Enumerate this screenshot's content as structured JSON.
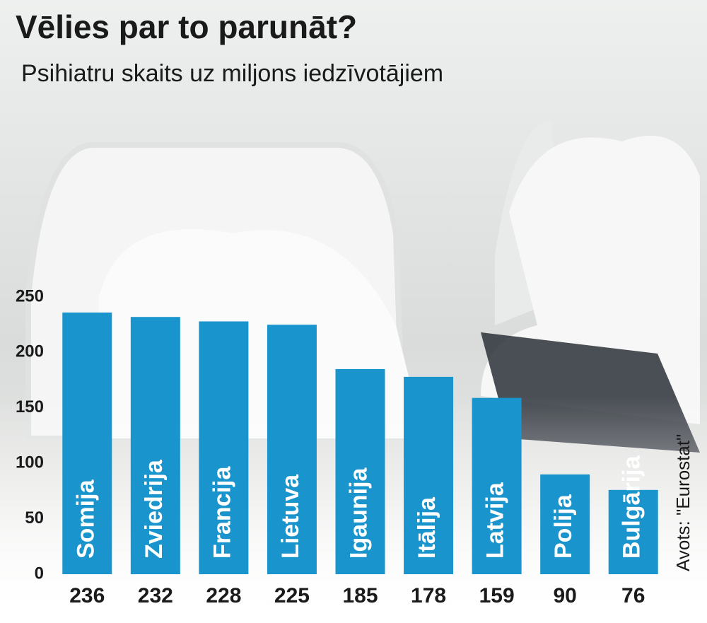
{
  "chart_data": {
    "type": "bar",
    "title": "Vēlies par to parunāt?",
    "subtitle": "Psihiatru skaits uz miljons iedzīvotājiem",
    "source": "Avots: \"Eurostat\"",
    "categories": [
      "Somija",
      "Zviedrija",
      "Francija",
      "Lietuva",
      "Igaunija",
      "Itālija",
      "Latvija",
      "Polija",
      "Bulgārija"
    ],
    "values": [
      236,
      232,
      228,
      225,
      185,
      178,
      159,
      90,
      76
    ],
    "color": "#1a94cc",
    "ylim": [
      0,
      250
    ],
    "yticks": [
      0,
      50,
      100,
      150,
      200,
      250
    ]
  }
}
